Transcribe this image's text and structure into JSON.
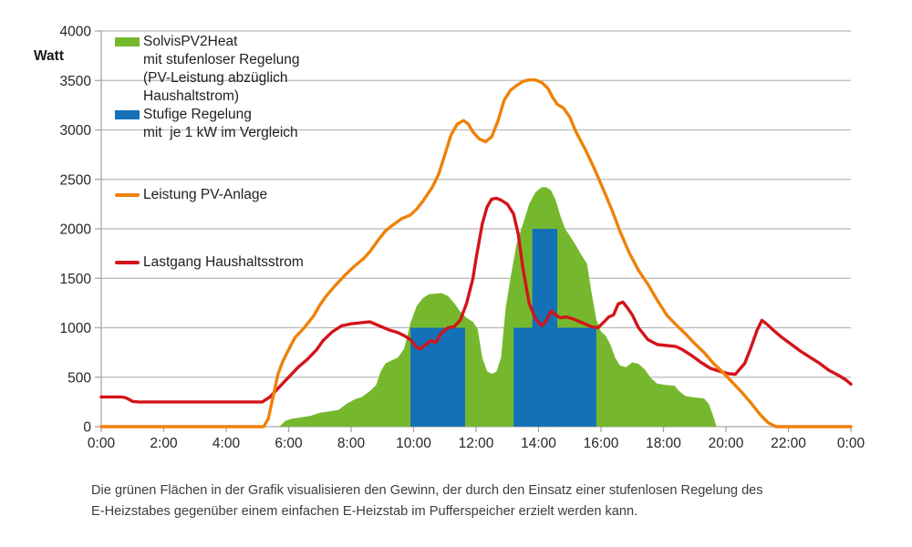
{
  "figure": {
    "caption_lines": [
      "Die grünen Flächen in der Grafik visualisieren den Gewinn, der durch den Einsatz einer stufenlosen Regelung des",
      "E-Heizstabes gegenüber einem einfachen E-Heizstab im Pufferspeicher erzielt werden kann."
    ]
  },
  "chart_data": {
    "type": "combo-area-bar-line",
    "title": "",
    "xlabel": "",
    "ylabel": "Watt",
    "x_unit": "hours",
    "xlim": [
      0,
      24
    ],
    "ylim": [
      0,
      4000
    ],
    "grid": "horizontal",
    "legend_position": "top-left-inside",
    "colors": {
      "green_area": "#76b82d",
      "blue_bars": "#1471b8",
      "orange_line": "#ef8108",
      "red_line": "#d3141a",
      "gridline": "#b9b9b9",
      "axis": "#a8a8a8",
      "tick_text": "#262626"
    },
    "y_ticks": [
      0,
      500,
      1000,
      1500,
      2000,
      2500,
      3000,
      3500,
      4000
    ],
    "x_ticks_hours": [
      0,
      2,
      4,
      6,
      8,
      10,
      12,
      14,
      16,
      18,
      20,
      22,
      24
    ],
    "x_tick_labels": [
      "0:00",
      "2:00",
      "4:00",
      "6:00",
      "8:00",
      "10:00",
      "12:00",
      "14:00",
      "16:00",
      "18:00",
      "20:00",
      "22:00",
      "0:00"
    ],
    "legend": [
      {
        "swatch": "rect",
        "color_key": "green_area",
        "lines": [
          "SolvisPV2Heat",
          "mit stufenloser Regelung",
          "(PV-Leistung abzüglich",
          "Haushaltstrom)"
        ]
      },
      {
        "swatch": "rect",
        "color_key": "blue_bars",
        "lines": [
          "Stufige Regelung",
          "mit  je 1 kW im Vergleich"
        ]
      },
      {
        "swatch": "line",
        "color_key": "orange_line",
        "lines": [
          "Leistung PV-Anlage"
        ]
      },
      {
        "swatch": "line",
        "color_key": "red_line",
        "lines": [
          "Lastgang Haushaltsstrom"
        ]
      }
    ],
    "series": [
      {
        "name": "SolvisPV2Heat mit stufenloser Regelung (PV-Leistung abzüglich Haushaltstrom)",
        "style": "area",
        "color_key": "green_area",
        "points": [
          [
            5.7,
            0
          ],
          [
            5.9,
            60
          ],
          [
            6.1,
            80
          ],
          [
            6.4,
            95
          ],
          [
            6.7,
            110
          ],
          [
            7.0,
            140
          ],
          [
            7.3,
            155
          ],
          [
            7.6,
            170
          ],
          [
            7.85,
            230
          ],
          [
            8.1,
            275
          ],
          [
            8.35,
            300
          ],
          [
            8.6,
            360
          ],
          [
            8.8,
            420
          ],
          [
            8.95,
            560
          ],
          [
            9.1,
            640
          ],
          [
            9.3,
            670
          ],
          [
            9.5,
            700
          ],
          [
            9.7,
            790
          ],
          [
            9.9,
            1050
          ],
          [
            10.1,
            1220
          ],
          [
            10.3,
            1300
          ],
          [
            10.5,
            1340
          ],
          [
            10.7,
            1345
          ],
          [
            10.9,
            1350
          ],
          [
            11.1,
            1320
          ],
          [
            11.3,
            1250
          ],
          [
            11.5,
            1160
          ],
          [
            11.7,
            1100
          ],
          [
            11.9,
            1060
          ],
          [
            12.05,
            990
          ],
          [
            12.2,
            700
          ],
          [
            12.35,
            560
          ],
          [
            12.5,
            535
          ],
          [
            12.65,
            555
          ],
          [
            12.8,
            700
          ],
          [
            12.95,
            1200
          ],
          [
            13.1,
            1500
          ],
          [
            13.3,
            1850
          ],
          [
            13.5,
            2050
          ],
          [
            13.7,
            2250
          ],
          [
            13.9,
            2370
          ],
          [
            14.1,
            2420
          ],
          [
            14.25,
            2420
          ],
          [
            14.4,
            2390
          ],
          [
            14.55,
            2290
          ],
          [
            14.7,
            2130
          ],
          [
            14.85,
            2000
          ],
          [
            15.0,
            1930
          ],
          [
            15.2,
            1830
          ],
          [
            15.4,
            1720
          ],
          [
            15.55,
            1650
          ],
          [
            15.7,
            1350
          ],
          [
            15.85,
            1080
          ],
          [
            16.0,
            960
          ],
          [
            16.15,
            920
          ],
          [
            16.3,
            830
          ],
          [
            16.45,
            700
          ],
          [
            16.6,
            620
          ],
          [
            16.8,
            600
          ],
          [
            17.0,
            650
          ],
          [
            17.2,
            635
          ],
          [
            17.4,
            580
          ],
          [
            17.6,
            490
          ],
          [
            17.8,
            435
          ],
          [
            18.1,
            420
          ],
          [
            18.35,
            415
          ],
          [
            18.5,
            360
          ],
          [
            18.7,
            310
          ],
          [
            19.0,
            295
          ],
          [
            19.3,
            285
          ],
          [
            19.45,
            230
          ],
          [
            19.6,
            100
          ],
          [
            19.7,
            0
          ]
        ]
      },
      {
        "name": "Stufige Regelung mit je 1 kW im Vergleich",
        "style": "bars",
        "color_key": "blue_bars",
        "bars": [
          {
            "from": 9.9,
            "to": 11.65,
            "watts": 1000
          },
          {
            "from": 13.2,
            "to": 15.85,
            "watts": 1000
          },
          {
            "from": 13.8,
            "to": 14.6,
            "watts": 2000
          }
        ]
      },
      {
        "name": "Lastgang Haushaltsstrom",
        "style": "line",
        "color_key": "red_line",
        "points": [
          [
            0,
            300
          ],
          [
            0.65,
            300
          ],
          [
            0.8,
            290
          ],
          [
            1.0,
            255
          ],
          [
            1.2,
            250
          ],
          [
            5.15,
            250
          ],
          [
            5.4,
            300
          ],
          [
            5.7,
            400
          ],
          [
            6.0,
            500
          ],
          [
            6.3,
            600
          ],
          [
            6.6,
            680
          ],
          [
            6.9,
            780
          ],
          [
            7.1,
            870
          ],
          [
            7.4,
            960
          ],
          [
            7.7,
            1020
          ],
          [
            8.0,
            1040
          ],
          [
            8.3,
            1050
          ],
          [
            8.6,
            1060
          ],
          [
            8.9,
            1020
          ],
          [
            9.2,
            980
          ],
          [
            9.5,
            950
          ],
          [
            9.7,
            920
          ],
          [
            9.9,
            880
          ],
          [
            10.1,
            800
          ],
          [
            10.2,
            785
          ],
          [
            10.4,
            830
          ],
          [
            10.55,
            870
          ],
          [
            10.7,
            850
          ],
          [
            10.9,
            950
          ],
          [
            11.1,
            1000
          ],
          [
            11.3,
            1010
          ],
          [
            11.5,
            1080
          ],
          [
            11.7,
            1250
          ],
          [
            11.9,
            1500
          ],
          [
            12.0,
            1700
          ],
          [
            12.2,
            2050
          ],
          [
            12.35,
            2220
          ],
          [
            12.5,
            2300
          ],
          [
            12.65,
            2310
          ],
          [
            12.8,
            2290
          ],
          [
            13.0,
            2250
          ],
          [
            13.2,
            2150
          ],
          [
            13.35,
            1950
          ],
          [
            13.5,
            1600
          ],
          [
            13.7,
            1250
          ],
          [
            13.9,
            1090
          ],
          [
            14.1,
            1020
          ],
          [
            14.25,
            1070
          ],
          [
            14.4,
            1170
          ],
          [
            14.55,
            1130
          ],
          [
            14.7,
            1100
          ],
          [
            14.9,
            1110
          ],
          [
            15.1,
            1090
          ],
          [
            15.4,
            1050
          ],
          [
            15.7,
            1010
          ],
          [
            15.9,
            1000
          ],
          [
            16.1,
            1060
          ],
          [
            16.25,
            1110
          ],
          [
            16.4,
            1130
          ],
          [
            16.55,
            1240
          ],
          [
            16.7,
            1260
          ],
          [
            16.85,
            1200
          ],
          [
            17.0,
            1130
          ],
          [
            17.2,
            1000
          ],
          [
            17.5,
            880
          ],
          [
            17.8,
            830
          ],
          [
            18.1,
            820
          ],
          [
            18.4,
            810
          ],
          [
            18.6,
            780
          ],
          [
            18.9,
            720
          ],
          [
            19.2,
            650
          ],
          [
            19.5,
            590
          ],
          [
            19.8,
            560
          ],
          [
            20.1,
            535
          ],
          [
            20.3,
            530
          ],
          [
            20.6,
            640
          ],
          [
            20.8,
            800
          ],
          [
            21.0,
            980
          ],
          [
            21.15,
            1075
          ],
          [
            21.3,
            1040
          ],
          [
            21.5,
            980
          ],
          [
            21.8,
            900
          ],
          [
            22.1,
            830
          ],
          [
            22.4,
            760
          ],
          [
            22.7,
            700
          ],
          [
            23.0,
            640
          ],
          [
            23.3,
            570
          ],
          [
            23.6,
            520
          ],
          [
            23.85,
            470
          ],
          [
            24,
            430
          ]
        ]
      },
      {
        "name": "Leistung PV-Anlage",
        "style": "line",
        "color_key": "orange_line",
        "points": [
          [
            0,
            0
          ],
          [
            5.2,
            0
          ],
          [
            5.35,
            80
          ],
          [
            5.5,
            300
          ],
          [
            5.65,
            520
          ],
          [
            5.8,
            650
          ],
          [
            6.0,
            780
          ],
          [
            6.2,
            900
          ],
          [
            6.5,
            1000
          ],
          [
            6.8,
            1120
          ],
          [
            7.0,
            1230
          ],
          [
            7.2,
            1320
          ],
          [
            7.5,
            1430
          ],
          [
            7.8,
            1530
          ],
          [
            8.1,
            1620
          ],
          [
            8.4,
            1700
          ],
          [
            8.6,
            1770
          ],
          [
            8.9,
            1900
          ],
          [
            9.1,
            1980
          ],
          [
            9.3,
            2030
          ],
          [
            9.6,
            2100
          ],
          [
            9.9,
            2140
          ],
          [
            10.1,
            2200
          ],
          [
            10.3,
            2280
          ],
          [
            10.6,
            2420
          ],
          [
            10.8,
            2550
          ],
          [
            11.0,
            2750
          ],
          [
            11.2,
            2950
          ],
          [
            11.4,
            3060
          ],
          [
            11.6,
            3095
          ],
          [
            11.75,
            3060
          ],
          [
            11.9,
            2980
          ],
          [
            12.1,
            2910
          ],
          [
            12.3,
            2880
          ],
          [
            12.5,
            2930
          ],
          [
            12.7,
            3090
          ],
          [
            12.9,
            3300
          ],
          [
            13.1,
            3400
          ],
          [
            13.3,
            3450
          ],
          [
            13.5,
            3490
          ],
          [
            13.7,
            3505
          ],
          [
            13.9,
            3505
          ],
          [
            14.1,
            3480
          ],
          [
            14.3,
            3420
          ],
          [
            14.45,
            3330
          ],
          [
            14.6,
            3260
          ],
          [
            14.8,
            3220
          ],
          [
            15.0,
            3130
          ],
          [
            15.2,
            2980
          ],
          [
            15.5,
            2800
          ],
          [
            15.8,
            2600
          ],
          [
            16.1,
            2380
          ],
          [
            16.35,
            2190
          ],
          [
            16.6,
            1980
          ],
          [
            16.9,
            1760
          ],
          [
            17.2,
            1580
          ],
          [
            17.5,
            1440
          ],
          [
            17.8,
            1280
          ],
          [
            18.1,
            1130
          ],
          [
            18.4,
            1030
          ],
          [
            18.7,
            940
          ],
          [
            19.0,
            840
          ],
          [
            19.3,
            750
          ],
          [
            19.6,
            640
          ],
          [
            19.9,
            550
          ],
          [
            20.2,
            450
          ],
          [
            20.5,
            350
          ],
          [
            20.8,
            240
          ],
          [
            21.1,
            120
          ],
          [
            21.35,
            40
          ],
          [
            21.6,
            0
          ],
          [
            24,
            0
          ]
        ]
      }
    ]
  }
}
